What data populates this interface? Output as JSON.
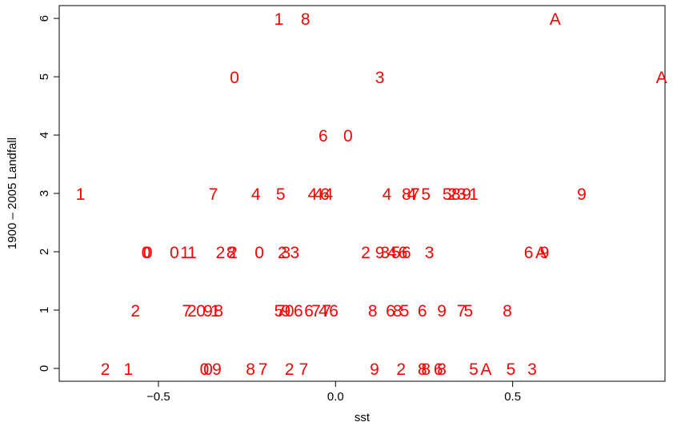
{
  "chart_data": {
    "type": "scatter",
    "xlabel": "sst",
    "ylabel": "1900 – 2005 Landfall",
    "xlim": [
      -0.78,
      0.93
    ],
    "ylim": [
      -0.22,
      6.22
    ],
    "x_ticks": [
      -0.5,
      0.0,
      0.5
    ],
    "x_tick_labels": [
      "−0.5",
      "0.0",
      "0.5"
    ],
    "y_ticks": [
      0,
      1,
      2,
      3,
      4,
      5,
      6
    ],
    "y_tick_labels": [
      "0",
      "1",
      "2",
      "3",
      "4",
      "5",
      "6"
    ],
    "grid": false,
    "marker": "decade-digit text labels",
    "point_color": "#ff0000",
    "points": [
      {
        "x": -0.16,
        "y": 6,
        "label": "1"
      },
      {
        "x": -0.085,
        "y": 6,
        "label": "8"
      },
      {
        "x": 0.62,
        "y": 6,
        "label": "A"
      },
      {
        "x": -0.285,
        "y": 5,
        "label": "0"
      },
      {
        "x": 0.125,
        "y": 5,
        "label": "3"
      },
      {
        "x": 0.92,
        "y": 5,
        "label": "A"
      },
      {
        "x": -0.035,
        "y": 4,
        "label": "6"
      },
      {
        "x": 0.035,
        "y": 4,
        "label": "0"
      },
      {
        "x": -0.72,
        "y": 3,
        "label": "1"
      },
      {
        "x": -0.345,
        "y": 3,
        "label": "7"
      },
      {
        "x": -0.225,
        "y": 3,
        "label": "4"
      },
      {
        "x": -0.155,
        "y": 3,
        "label": "5"
      },
      {
        "x": -0.065,
        "y": 3,
        "label": "4"
      },
      {
        "x": -0.048,
        "y": 3,
        "label": "4"
      },
      {
        "x": -0.03,
        "y": 3,
        "label": "6"
      },
      {
        "x": -0.02,
        "y": 3,
        "label": "4"
      },
      {
        "x": 0.145,
        "y": 3,
        "label": "4"
      },
      {
        "x": 0.2,
        "y": 3,
        "label": "8"
      },
      {
        "x": 0.215,
        "y": 3,
        "label": "4"
      },
      {
        "x": 0.225,
        "y": 3,
        "label": "7"
      },
      {
        "x": 0.255,
        "y": 3,
        "label": "5"
      },
      {
        "x": 0.315,
        "y": 3,
        "label": "5"
      },
      {
        "x": 0.33,
        "y": 3,
        "label": "2"
      },
      {
        "x": 0.34,
        "y": 3,
        "label": "8"
      },
      {
        "x": 0.355,
        "y": 3,
        "label": "3"
      },
      {
        "x": 0.37,
        "y": 3,
        "label": "9"
      },
      {
        "x": 0.39,
        "y": 3,
        "label": "1"
      },
      {
        "x": 0.695,
        "y": 3,
        "label": "9"
      },
      {
        "x": -0.535,
        "y": 2,
        "label": "0"
      },
      {
        "x": -0.53,
        "y": 2,
        "label": "0"
      },
      {
        "x": -0.455,
        "y": 2,
        "label": "0"
      },
      {
        "x": -0.425,
        "y": 2,
        "label": "1"
      },
      {
        "x": -0.405,
        "y": 2,
        "label": "1"
      },
      {
        "x": -0.325,
        "y": 2,
        "label": "2"
      },
      {
        "x": -0.295,
        "y": 2,
        "label": "8"
      },
      {
        "x": -0.29,
        "y": 2,
        "label": "2"
      },
      {
        "x": -0.215,
        "y": 2,
        "label": "0"
      },
      {
        "x": -0.15,
        "y": 2,
        "label": "2"
      },
      {
        "x": -0.14,
        "y": 2,
        "label": "3"
      },
      {
        "x": -0.115,
        "y": 2,
        "label": "3"
      },
      {
        "x": 0.085,
        "y": 2,
        "label": "2"
      },
      {
        "x": 0.125,
        "y": 2,
        "label": "9"
      },
      {
        "x": 0.14,
        "y": 2,
        "label": "3"
      },
      {
        "x": 0.16,
        "y": 2,
        "label": "4"
      },
      {
        "x": 0.17,
        "y": 2,
        "label": "5"
      },
      {
        "x": 0.19,
        "y": 2,
        "label": "6"
      },
      {
        "x": 0.2,
        "y": 2,
        "label": "6"
      },
      {
        "x": 0.265,
        "y": 2,
        "label": "3"
      },
      {
        "x": 0.545,
        "y": 2,
        "label": "6"
      },
      {
        "x": 0.58,
        "y": 2,
        "label": "A"
      },
      {
        "x": 0.59,
        "y": 2,
        "label": "9"
      },
      {
        "x": -0.565,
        "y": 1,
        "label": "2"
      },
      {
        "x": -0.42,
        "y": 1,
        "label": "7"
      },
      {
        "x": -0.405,
        "y": 1,
        "label": "2"
      },
      {
        "x": -0.38,
        "y": 1,
        "label": "0"
      },
      {
        "x": -0.36,
        "y": 1,
        "label": "9"
      },
      {
        "x": -0.34,
        "y": 1,
        "label": "1"
      },
      {
        "x": -0.33,
        "y": 1,
        "label": "8"
      },
      {
        "x": -0.16,
        "y": 1,
        "label": "5"
      },
      {
        "x": -0.155,
        "y": 1,
        "label": "7"
      },
      {
        "x": -0.14,
        "y": 1,
        "label": "9"
      },
      {
        "x": -0.13,
        "y": 1,
        "label": "0"
      },
      {
        "x": -0.105,
        "y": 1,
        "label": "6"
      },
      {
        "x": -0.075,
        "y": 1,
        "label": "6"
      },
      {
        "x": -0.055,
        "y": 1,
        "label": "7"
      },
      {
        "x": -0.035,
        "y": 1,
        "label": "4"
      },
      {
        "x": -0.025,
        "y": 1,
        "label": "7"
      },
      {
        "x": -0.005,
        "y": 1,
        "label": "6"
      },
      {
        "x": 0.105,
        "y": 1,
        "label": "8"
      },
      {
        "x": 0.155,
        "y": 1,
        "label": "6"
      },
      {
        "x": 0.175,
        "y": 1,
        "label": "8"
      },
      {
        "x": 0.195,
        "y": 1,
        "label": "5"
      },
      {
        "x": 0.245,
        "y": 1,
        "label": "6"
      },
      {
        "x": 0.3,
        "y": 1,
        "label": "9"
      },
      {
        "x": 0.355,
        "y": 1,
        "label": "7"
      },
      {
        "x": 0.375,
        "y": 1,
        "label": "5"
      },
      {
        "x": 0.485,
        "y": 1,
        "label": "8"
      },
      {
        "x": -0.65,
        "y": 0,
        "label": "2"
      },
      {
        "x": -0.585,
        "y": 0,
        "label": "1"
      },
      {
        "x": -0.37,
        "y": 0,
        "label": "0"
      },
      {
        "x": -0.36,
        "y": 0,
        "label": "0"
      },
      {
        "x": -0.335,
        "y": 0,
        "label": "9"
      },
      {
        "x": -0.24,
        "y": 0,
        "label": "8"
      },
      {
        "x": -0.205,
        "y": 0,
        "label": "7"
      },
      {
        "x": -0.13,
        "y": 0,
        "label": "2"
      },
      {
        "x": -0.09,
        "y": 0,
        "label": "7"
      },
      {
        "x": 0.11,
        "y": 0,
        "label": "9"
      },
      {
        "x": 0.185,
        "y": 0,
        "label": "2"
      },
      {
        "x": 0.245,
        "y": 0,
        "label": "8"
      },
      {
        "x": 0.255,
        "y": 0,
        "label": "8"
      },
      {
        "x": 0.29,
        "y": 0,
        "label": "6"
      },
      {
        "x": 0.3,
        "y": 0,
        "label": "8"
      },
      {
        "x": 0.39,
        "y": 0,
        "label": "5"
      },
      {
        "x": 0.425,
        "y": 0,
        "label": "A"
      },
      {
        "x": 0.495,
        "y": 0,
        "label": "5"
      },
      {
        "x": 0.555,
        "y": 0,
        "label": "3"
      }
    ]
  }
}
